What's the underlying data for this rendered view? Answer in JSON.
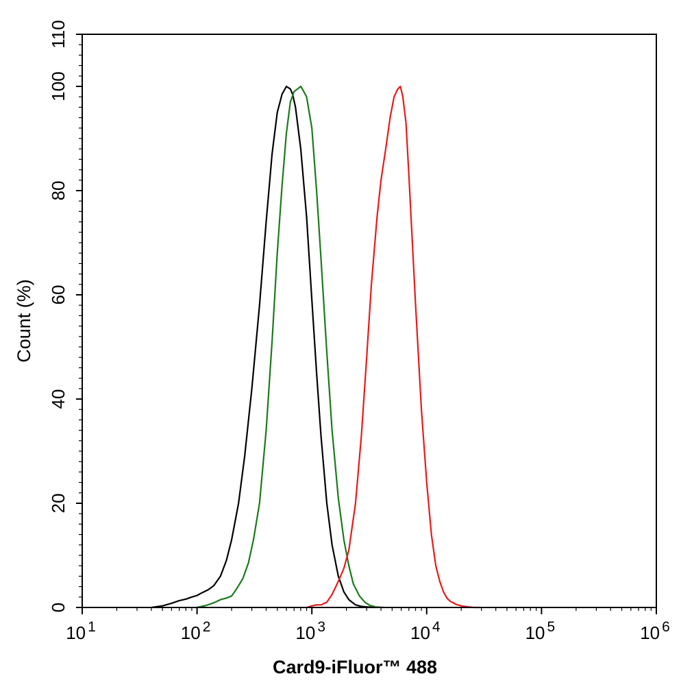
{
  "chart_data": {
    "type": "line",
    "title": "",
    "xlabel": "Card9-iFluor™ 488",
    "ylabel": "Count  (%)",
    "x_scale": "log",
    "xlim": [
      10,
      1000000
    ],
    "ylim": [
      0,
      110
    ],
    "x_ticks": [
      {
        "value": 10,
        "base": "10",
        "exp": "1"
      },
      {
        "value": 100,
        "base": "10",
        "exp": "2"
      },
      {
        "value": 1000,
        "base": "10",
        "exp": "3"
      },
      {
        "value": 10000,
        "base": "10",
        "exp": "4"
      },
      {
        "value": 100000,
        "base": "10",
        "exp": "5"
      },
      {
        "value": 1000000,
        "base": "10",
        "exp": "6"
      }
    ],
    "y_ticks": [
      0,
      20,
      40,
      60,
      80,
      100,
      110
    ],
    "grid": false,
    "legend": "none",
    "series": [
      {
        "color": "#000000",
        "x": [
          40,
          50,
          60,
          70,
          80,
          90,
          100,
          110,
          125,
          140,
          160,
          180,
          200,
          230,
          260,
          300,
          350,
          400,
          450,
          500,
          550,
          600,
          650,
          680,
          720,
          800,
          900,
          1000,
          1100,
          1200,
          1350,
          1500,
          1700,
          1900,
          2100,
          2400,
          2700,
          3000,
          3500
        ],
        "y": [
          0,
          0.3,
          0.8,
          1.3,
          1.6,
          2,
          2.3,
          2.8,
          3.4,
          4.2,
          6,
          9,
          13,
          20,
          29,
          42,
          58,
          74,
          87,
          95,
          98.5,
          100,
          99.5,
          98.5,
          96,
          88,
          75,
          59,
          45,
          33,
          20,
          12,
          6,
          3,
          1.5,
          0.5,
          0.2,
          0.1,
          0
        ]
      },
      {
        "color": "#1a7a1a",
        "x": [
          100,
          120,
          140,
          160,
          180,
          200,
          220,
          250,
          280,
          310,
          350,
          400,
          450,
          500,
          550,
          600,
          650,
          700,
          750,
          800,
          850,
          900,
          1000,
          1100,
          1200,
          1350,
          1500,
          1700,
          1900,
          2100,
          2300,
          2600,
          2900,
          3200,
          3600,
          4200
        ],
        "y": [
          0,
          0.4,
          0.9,
          1.5,
          1.8,
          2.2,
          3.5,
          5.5,
          8.5,
          13,
          20,
          34,
          51,
          68,
          81,
          91,
          97,
          99,
          99.5,
          100,
          99,
          98,
          92,
          80,
          67,
          49,
          34,
          21,
          13,
          8,
          4.5,
          2.2,
          1,
          0.4,
          0.1,
          0
        ]
      },
      {
        "color": "#e81919",
        "x": [
          900,
          1000,
          1100,
          1200,
          1350,
          1500,
          1700,
          1900,
          2100,
          2400,
          2700,
          3000,
          3300,
          3700,
          4000,
          4400,
          4800,
          5200,
          5600,
          5900,
          6200,
          6600,
          7000,
          7500,
          8000,
          9000,
          10000,
          11000,
          12000,
          13000,
          14000,
          15000,
          16000,
          18000,
          20000,
          23000,
          26000,
          30000
        ],
        "y": [
          0,
          0.3,
          0.5,
          0.5,
          1,
          2.5,
          5,
          7.5,
          11,
          20,
          33,
          48,
          62,
          75,
          82,
          88,
          94,
          98,
          99.5,
          100,
          98,
          93,
          83,
          70,
          58,
          38,
          24,
          14,
          8,
          5,
          3,
          1.8,
          1.2,
          0.6,
          0.3,
          0.1,
          0,
          0
        ]
      }
    ]
  }
}
